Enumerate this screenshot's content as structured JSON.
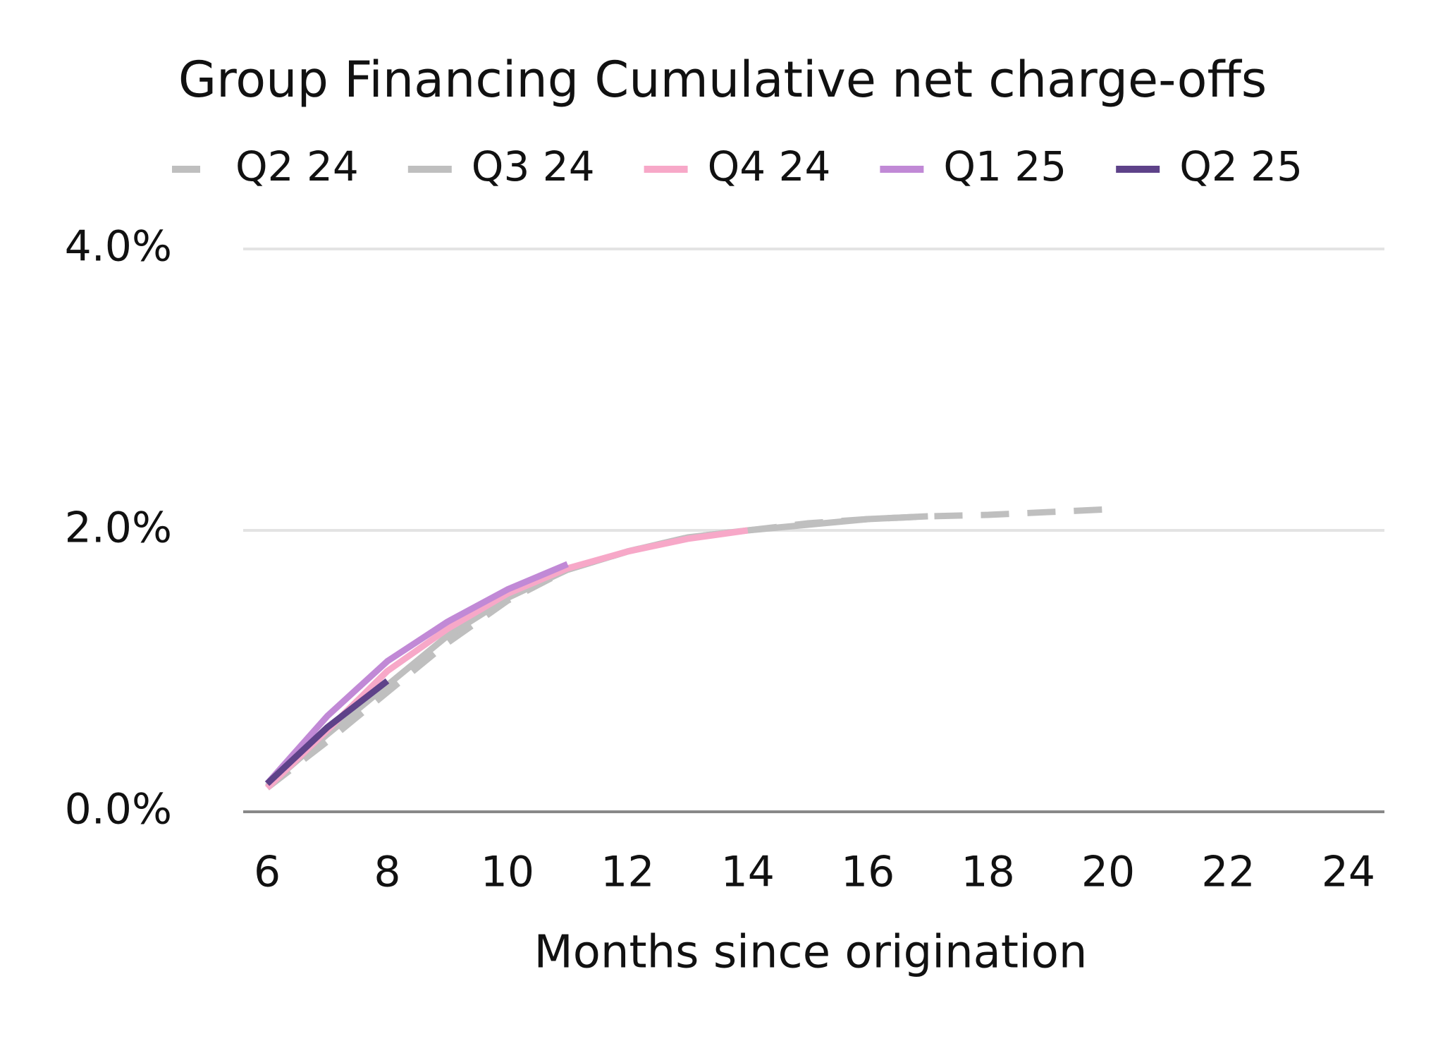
{
  "chart_data": {
    "type": "line",
    "title": "Group Financing Cumulative net charge-offs",
    "x_label": "Months since origination",
    "x": [
      6,
      7,
      8,
      9,
      10,
      11,
      12,
      13,
      14,
      15,
      16,
      17,
      18,
      19,
      20
    ],
    "series": [
      {
        "name": "Q2 24",
        "color": "#bfbfbf",
        "style": "dashed",
        "values": [
          0.17,
          0.5,
          0.85,
          1.2,
          1.5,
          1.72,
          1.85,
          1.95,
          2.0,
          2.05,
          2.08,
          2.1,
          2.11,
          2.13,
          2.15
        ]
      },
      {
        "name": "Q3 24",
        "color": "#bfbfbf",
        "style": "solid",
        "values": [
          0.18,
          0.55,
          0.9,
          1.25,
          1.52,
          1.72,
          1.85,
          1.95,
          2.0,
          2.04,
          2.08,
          2.1,
          null,
          null,
          null
        ]
      },
      {
        "name": "Q4 24",
        "color": "#f7a8c8",
        "style": "solid",
        "values": [
          0.17,
          0.58,
          1.0,
          1.3,
          1.55,
          1.73,
          1.85,
          1.94,
          2.0,
          null,
          null,
          null,
          null,
          null,
          null
        ]
      },
      {
        "name": "Q1 25",
        "color": "#c189d6",
        "style": "solid",
        "values": [
          0.2,
          0.68,
          1.07,
          1.35,
          1.58,
          1.76,
          null,
          null,
          null,
          null,
          null,
          null,
          null,
          null,
          null
        ]
      },
      {
        "name": "Q2 25",
        "color": "#5e4289",
        "style": "solid",
        "values": [
          0.2,
          0.6,
          0.93,
          null,
          null,
          null,
          null,
          null,
          null,
          null,
          null,
          null,
          null,
          null,
          null
        ]
      }
    ],
    "xlim": [
      5.6,
      24.6
    ],
    "xticks": [
      6,
      8,
      10,
      12,
      14,
      16,
      18,
      20,
      22,
      24
    ],
    "ylim": [
      0,
      4
    ],
    "yticks": [
      {
        "value": 0,
        "label": "0.0%"
      },
      {
        "value": 2,
        "label": "2.0%"
      },
      {
        "value": 4,
        "label": "4.0%"
      }
    ],
    "grid": true,
    "legend": "top"
  }
}
